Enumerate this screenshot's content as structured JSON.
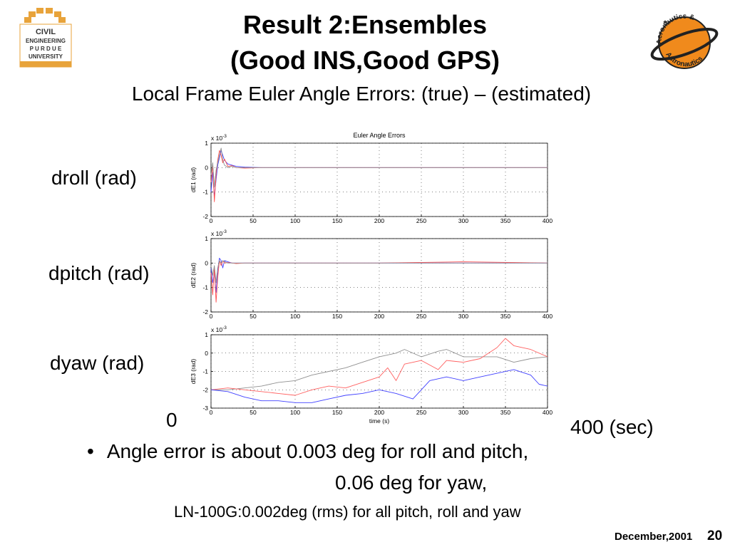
{
  "slide": {
    "title_line1": "Result 2:Ensembles",
    "title_line2": "(Good INS,Good GPS)",
    "subtitle": "Local Frame Euler  Angle Errors: (true) – (estimated)",
    "side_labels": [
      "droll (rad)",
      "dpitch (rad)",
      "dyaw (rad)"
    ],
    "x_start_label": "0",
    "x_end_label": "400 (sec)",
    "bullet": "Angle error is about 0.003 deg for roll and pitch,",
    "bullet_cont": "0.06 deg for yaw,",
    "note": "LN-100G:0.002deg (rms) for all pitch, roll and yaw",
    "footer_date": "December,2001",
    "page_number": "20"
  },
  "logos": {
    "left": {
      "lines": [
        "CIVIL",
        "ENGINEERING",
        "P U R D U E",
        "UNIVERSITY"
      ],
      "color": "#e8a33a"
    },
    "right": {
      "text_top": "Aeronautics &",
      "text_bottom": "Astronautics",
      "color": "#f08a1c"
    }
  },
  "chart_data": [
    {
      "type": "line",
      "title": "Euler Angle Errors",
      "ylabel": "dE1 (rad)",
      "xlabel": "",
      "exponent_label": "x 10-3",
      "xlim": [
        0,
        400
      ],
      "ylim": [
        -2,
        1
      ],
      "xticks": [
        0,
        50,
        100,
        150,
        200,
        250,
        300,
        350,
        400
      ],
      "yticks": [
        -2,
        -1,
        0,
        1
      ],
      "grid": true,
      "series": [
        {
          "color": "#4040ff",
          "x": [
            0,
            2,
            4,
            6,
            8,
            10,
            12,
            14,
            16,
            20,
            25,
            30,
            40,
            60,
            100,
            200,
            300,
            400
          ],
          "y": [
            -1.0,
            -0.2,
            -1.2,
            -0.5,
            0.1,
            0.4,
            0.7,
            0.5,
            0.3,
            0.15,
            0.1,
            0.05,
            0.02,
            0.0,
            0.0,
            0.0,
            0.0,
            0.0
          ]
        },
        {
          "color": "#ff5050",
          "x": [
            0,
            2,
            4,
            6,
            8,
            10,
            12,
            14,
            16,
            20,
            25,
            30,
            40,
            60,
            100,
            200,
            300,
            400
          ],
          "y": [
            -0.6,
            0.1,
            -1.4,
            -0.3,
            0.3,
            0.7,
            0.5,
            0.2,
            0.35,
            0.05,
            0.08,
            0.0,
            -0.02,
            0.0,
            0.0,
            0.0,
            0.0,
            0.0
          ]
        },
        {
          "color": "#909090",
          "x": [
            0,
            2,
            4,
            6,
            8,
            10,
            12,
            14,
            16,
            20,
            25,
            30,
            40,
            60,
            100,
            200,
            300,
            400
          ],
          "y": [
            -0.3,
            0.2,
            -0.8,
            -0.1,
            0.2,
            0.5,
            0.8,
            0.3,
            0.1,
            0.0,
            0.05,
            0.0,
            0.0,
            0.0,
            0.0,
            0.0,
            0.0,
            0.0
          ]
        }
      ]
    },
    {
      "type": "line",
      "title": "",
      "ylabel": "dE2 (rad)",
      "xlabel": "",
      "exponent_label": "x 10-3",
      "xlim": [
        0,
        400
      ],
      "ylim": [
        -2,
        1
      ],
      "xticks": [
        0,
        50,
        100,
        150,
        200,
        250,
        300,
        350,
        400
      ],
      "yticks": [
        -2,
        -1,
        0,
        1
      ],
      "grid": true,
      "series": [
        {
          "color": "#4040ff",
          "x": [
            0,
            2,
            4,
            6,
            8,
            10,
            12,
            14,
            16,
            20,
            25,
            30,
            40,
            60,
            100,
            200,
            300,
            400
          ],
          "y": [
            -0.2,
            -0.8,
            -0.4,
            -1.2,
            -0.3,
            0.2,
            0.1,
            -0.2,
            0.1,
            0.05,
            0.0,
            0.0,
            0.0,
            0.0,
            0.0,
            0.0,
            0.0,
            0.0
          ]
        },
        {
          "color": "#ff5050",
          "x": [
            0,
            2,
            4,
            6,
            8,
            10,
            12,
            14,
            16,
            20,
            25,
            30,
            40,
            60,
            100,
            200,
            300,
            400
          ],
          "y": [
            -0.4,
            -1.3,
            -0.2,
            -1.6,
            -0.6,
            0.1,
            -0.1,
            0.1,
            0.0,
            0.02,
            0.0,
            -0.02,
            0.0,
            0.0,
            0.0,
            0.0,
            0.05,
            0.0
          ]
        },
        {
          "color": "#909090",
          "x": [
            0,
            2,
            4,
            6,
            8,
            10,
            12,
            14,
            16,
            20,
            25,
            30,
            40,
            60,
            100,
            200,
            300,
            400
          ],
          "y": [
            -0.1,
            -0.5,
            -0.1,
            -0.8,
            -0.2,
            0.1,
            0.0,
            0.1,
            0.05,
            0.0,
            0.0,
            0.0,
            0.0,
            0.0,
            0.0,
            0.0,
            0.0,
            0.0
          ]
        }
      ]
    },
    {
      "type": "line",
      "title": "",
      "ylabel": "dE3 (rad)",
      "xlabel": "time (s)",
      "exponent_label": "x 10-3",
      "xlim": [
        0,
        400
      ],
      "ylim": [
        -3,
        1
      ],
      "xticks": [
        0,
        50,
        100,
        150,
        200,
        250,
        300,
        350,
        400
      ],
      "yticks": [
        -3,
        -2,
        -1,
        0,
        1
      ],
      "grid": true,
      "series": [
        {
          "color": "#909090",
          "x": [
            0,
            20,
            40,
            60,
            80,
            100,
            120,
            140,
            160,
            180,
            200,
            220,
            230,
            250,
            270,
            280,
            300,
            320,
            340,
            360,
            380,
            400
          ],
          "y": [
            -2.0,
            -2.0,
            -1.9,
            -1.8,
            -1.6,
            -1.5,
            -1.2,
            -1.0,
            -0.8,
            -0.5,
            -0.2,
            0.0,
            0.2,
            -0.2,
            0.1,
            0.2,
            -0.2,
            -0.2,
            -0.2,
            -0.5,
            -0.3,
            -0.2
          ]
        },
        {
          "color": "#ff6060",
          "x": [
            0,
            20,
            40,
            60,
            80,
            100,
            120,
            140,
            160,
            180,
            200,
            210,
            220,
            230,
            250,
            270,
            280,
            300,
            320,
            340,
            350,
            360,
            380,
            400
          ],
          "y": [
            -2.0,
            -1.9,
            -2.0,
            -2.1,
            -2.2,
            -2.3,
            -2.0,
            -1.8,
            -1.9,
            -1.6,
            -1.3,
            -0.8,
            -1.5,
            -0.6,
            -0.4,
            -0.9,
            -0.4,
            -0.5,
            -0.3,
            0.3,
            0.8,
            0.4,
            0.2,
            -0.2
          ]
        },
        {
          "color": "#4040ff",
          "x": [
            0,
            20,
            40,
            60,
            80,
            100,
            120,
            140,
            160,
            180,
            200,
            220,
            240,
            250,
            260,
            280,
            300,
            320,
            340,
            360,
            380,
            390,
            400
          ],
          "y": [
            -2.0,
            -2.1,
            -2.4,
            -2.6,
            -2.6,
            -2.7,
            -2.7,
            -2.5,
            -2.3,
            -2.2,
            -2.0,
            -2.2,
            -2.5,
            -2.0,
            -1.5,
            -1.3,
            -1.5,
            -1.3,
            -1.1,
            -0.9,
            -1.2,
            -1.7,
            -1.8
          ]
        }
      ]
    }
  ]
}
